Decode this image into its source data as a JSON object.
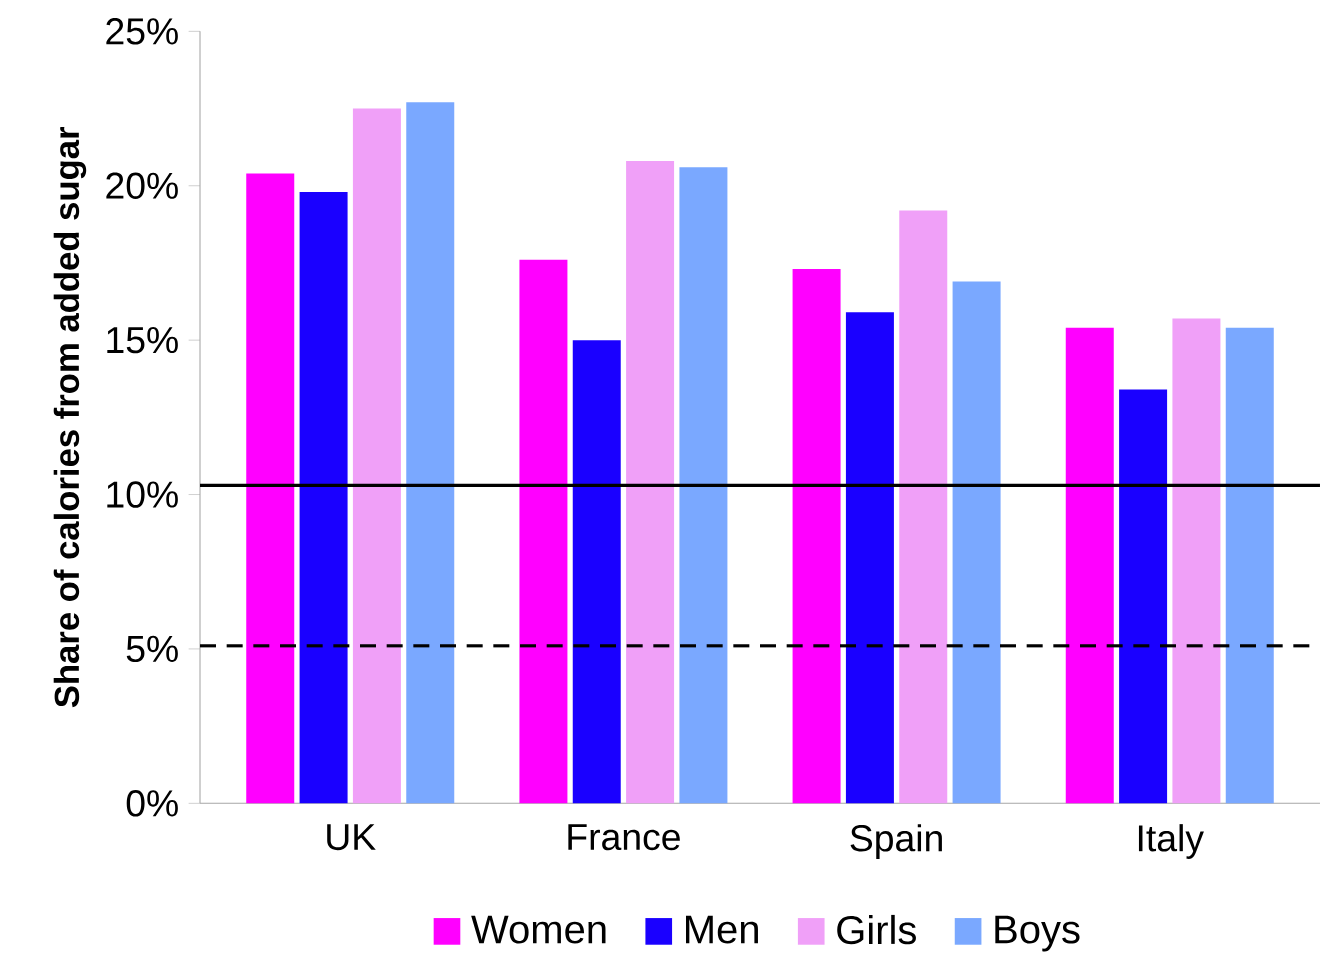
{
  "chart_data": {
    "type": "bar",
    "ylabel": "Share of calories from added sugar",
    "categories": [
      "UK",
      "France",
      "Spain",
      "Italy"
    ],
    "series": [
      {
        "name": "Women",
        "color": "#ff00ff",
        "values": [
          20.4,
          17.6,
          17.3,
          15.4
        ]
      },
      {
        "name": "Men",
        "color": "#1a00ff",
        "values": [
          19.8,
          15.0,
          15.9,
          13.4
        ]
      },
      {
        "name": "Girls",
        "color": "#f0a0f8",
        "values": [
          22.5,
          20.8,
          19.2,
          15.7
        ]
      },
      {
        "name": "Boys",
        "color": "#7aa8ff",
        "values": [
          22.7,
          20.6,
          16.9,
          15.4
        ]
      }
    ],
    "ylim": [
      0,
      25
    ],
    "yticks": [
      {
        "value": 0,
        "label": "0%"
      },
      {
        "value": 5,
        "label": "5%"
      },
      {
        "value": 10,
        "label": "10%"
      },
      {
        "value": 15,
        "label": "15%"
      },
      {
        "value": 20,
        "label": "20%"
      },
      {
        "value": 25,
        "label": "25%"
      }
    ],
    "ref_lines": [
      {
        "axis": "y",
        "value": 10.3,
        "color": "#000000",
        "line_style": "solid"
      },
      {
        "axis": "y",
        "value": 5.1,
        "color": "#000000",
        "line_style": "dashed"
      }
    ],
    "grid": false,
    "legend": "bottom"
  }
}
